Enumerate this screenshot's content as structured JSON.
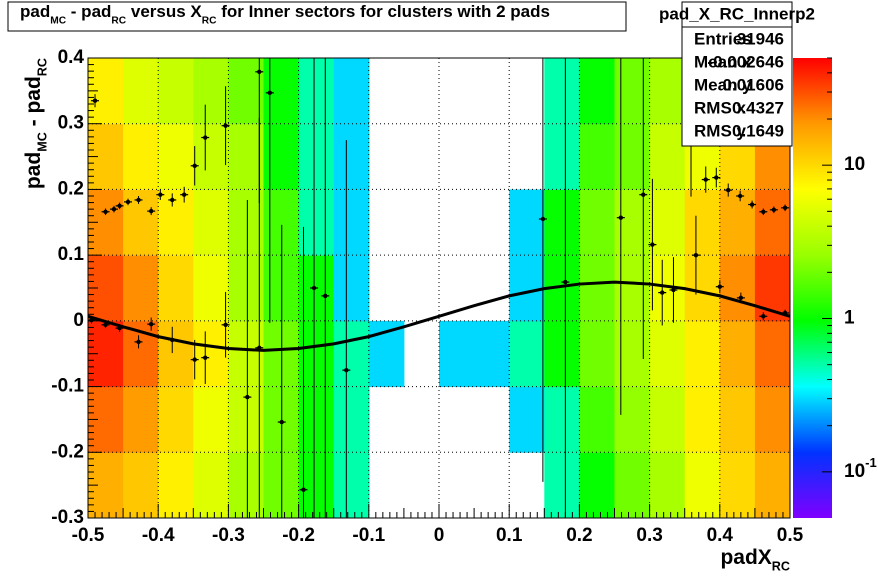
{
  "chart_data": {
    "type": "heatmap",
    "title_parts": [
      "pad",
      "MC",
      " - pad",
      "RC",
      " versus X",
      "RC",
      " for Inner sectors for clusters with 2 pads"
    ],
    "xlabel_parts": [
      "padX",
      "RC"
    ],
    "ylabel_parts": [
      "pad",
      "MC",
      " - pad",
      "RC"
    ],
    "xlim": [
      -0.5,
      0.5
    ],
    "ylim": [
      -0.3,
      0.4
    ],
    "xticks": [
      -0.5,
      -0.4,
      -0.3,
      -0.2,
      -0.1,
      0,
      0.1,
      0.2,
      0.3,
      0.4,
      0.5
    ],
    "yticks": [
      -0.3,
      -0.2,
      -0.1,
      0,
      0.1,
      0.2,
      0.3,
      0.4
    ],
    "grid": true,
    "zlim": [
      0.05,
      50
    ],
    "zlog": true,
    "zticks": [
      {
        "value": 0.1,
        "label": "10",
        "sup": "-1"
      },
      1,
      10
    ],
    "palette": [
      "#7f00ff",
      "#0033ff",
      "#00ffff",
      "#00ff00",
      "#99ff00",
      "#ffff00",
      "#ff9900",
      "#ff0000"
    ],
    "xbins": [
      -0.5,
      -0.45,
      -0.4,
      -0.35,
      -0.3,
      -0.25,
      -0.2,
      -0.15,
      -0.1,
      -0.05,
      0,
      0.05,
      0.1,
      0.15,
      0.2,
      0.25,
      0.3,
      0.35,
      0.4,
      0.45,
      0.5
    ],
    "ybins": [
      -0.3,
      -0.2,
      -0.1,
      0,
      0.1,
      0.2,
      0.3,
      0.4
    ],
    "z": [
      [
        15,
        12,
        8,
        5,
        3,
        2,
        1,
        0.5,
        0,
        0,
        0,
        0,
        0,
        0.5,
        1,
        2,
        3,
        6,
        10,
        15
      ],
      [
        25,
        18,
        10,
        6,
        4,
        2,
        1,
        0.5,
        0,
        0,
        0,
        0,
        0.3,
        0.5,
        1.5,
        2.5,
        4,
        8,
        12,
        20
      ],
      [
        40,
        25,
        12,
        8,
        4,
        2,
        1,
        0.5,
        0.3,
        0,
        0.3,
        0.3,
        0.5,
        1,
        2,
        3,
        5,
        8,
        15,
        25
      ],
      [
        30,
        20,
        10,
        6,
        3,
        1.5,
        1,
        0.3,
        0,
        0,
        0,
        0,
        0.3,
        1,
        2,
        3,
        6,
        10,
        20,
        35
      ],
      [
        20,
        12,
        8,
        5,
        3,
        1.5,
        0.5,
        0.3,
        0,
        0,
        0,
        0,
        0.3,
        1,
        2,
        3,
        5,
        10,
        15,
        25
      ],
      [
        12,
        8,
        6,
        4,
        3,
        1,
        0.5,
        0.3,
        0,
        0,
        0,
        0,
        0,
        0.5,
        1.5,
        2,
        4,
        6,
        10,
        20
      ],
      [
        8,
        5,
        4,
        3,
        2,
        1,
        0.5,
        0.3,
        0,
        0,
        0,
        0,
        0,
        0.5,
        1,
        2,
        3,
        5,
        8,
        15
      ]
    ],
    "profile": {
      "x": [
        -0.49,
        -0.475,
        -0.463,
        -0.455,
        -0.443,
        -0.428,
        -0.41,
        -0.397,
        -0.38,
        -0.363,
        -0.348,
        -0.333,
        -0.304,
        -0.256,
        -0.241,
        -0.495,
        -0.475,
        -0.455,
        -0.428,
        -0.41,
        -0.38,
        -0.348,
        -0.333,
        -0.304,
        -0.273,
        -0.256,
        -0.224,
        -0.193,
        -0.178,
        -0.162,
        -0.132,
        0.148,
        0.18,
        0.259,
        0.291,
        0.304,
        0.318,
        0.334,
        0.359,
        0.366,
        0.38,
        0.395,
        0.412,
        0.429,
        0.446,
        0.462,
        0.477,
        0.493,
        0.4,
        0.43,
        0.462,
        0.493
      ],
      "y": [
        0.335,
        0.166,
        0.17,
        0.175,
        0.181,
        0.184,
        0.167,
        0.192,
        0.184,
        0.192,
        0.236,
        0.279,
        0.297,
        0.379,
        0.347,
        0.001,
        -0.006,
        -0.011,
        -0.032,
        -0.005,
        -0.029,
        -0.059,
        -0.056,
        -0.006,
        -0.116,
        -0.041,
        -0.154,
        -0.257,
        0.05,
        0.038,
        -0.075,
        0.155,
        0.059,
        0.157,
        0.192,
        0.116,
        0.043,
        0.047,
        0.289,
        0.1,
        0.215,
        0.218,
        0.199,
        0.19,
        0.177,
        0.166,
        0.169,
        0.172,
        0.052,
        0.035,
        0.007,
        0.012
      ],
      "yerr": [
        0.01,
        0.005,
        0.005,
        0.005,
        0.005,
        0.006,
        0.006,
        0.008,
        0.01,
        0.012,
        0.03,
        0.05,
        0.06,
        0.2,
        0.35,
        0.005,
        0.005,
        0.006,
        0.01,
        0.01,
        0.02,
        0.03,
        0.04,
        0.05,
        0.3,
        0.35,
        0.3,
        0.4,
        0.4,
        0.4,
        0.35,
        0.4,
        0.4,
        0.3,
        0.25,
        0.1,
        0.05,
        0.05,
        0.1,
        0.06,
        0.02,
        0.015,
        0.01,
        0.008,
        0.006,
        0.005,
        0.005,
        0.005,
        0.01,
        0.008,
        0.006,
        0.005
      ]
    },
    "fit": {
      "x": [
        -0.5,
        -0.45,
        -0.4,
        -0.35,
        -0.3,
        -0.25,
        -0.2,
        -0.15,
        -0.1,
        -0.05,
        0,
        0.05,
        0.1,
        0.15,
        0.2,
        0.25,
        0.3,
        0.35,
        0.4,
        0.45,
        0.5
      ],
      "y": [
        0.007,
        -0.009,
        -0.024,
        -0.035,
        -0.042,
        -0.045,
        -0.042,
        -0.035,
        -0.024,
        -0.009,
        0.007,
        0.023,
        0.038,
        0.049,
        0.056,
        0.059,
        0.056,
        0.049,
        0.038,
        0.023,
        0.007
      ]
    },
    "stats": {
      "name": "pad_X_RC_Innerp2",
      "rows": [
        [
          "Entries",
          31946
        ],
        [
          "Mean x",
          -0.002646
        ],
        [
          "Mean y",
          0.01606
        ],
        [
          "RMS x",
          0.4327
        ],
        [
          "RMS y",
          0.1649
        ]
      ]
    }
  }
}
